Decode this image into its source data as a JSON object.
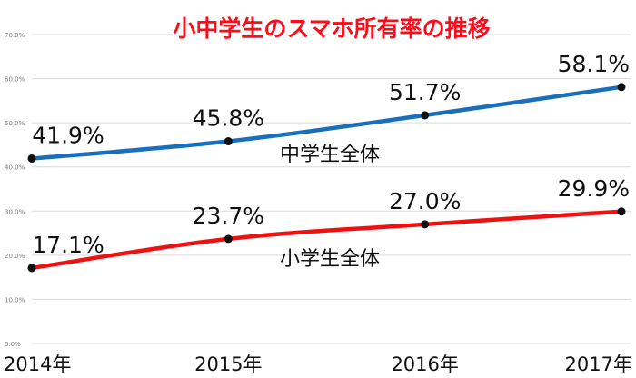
{
  "chart_data": {
    "type": "line",
    "title": "小中学生のスマホ所有率の推移",
    "categories": [
      "2014年",
      "2015年",
      "2016年",
      "2017年"
    ],
    "ylim": [
      0,
      70
    ],
    "yticks": [
      "0.0%",
      "10.0%",
      "20.0%",
      "30.0%",
      "40.0%",
      "50.0%",
      "60.0%",
      "70.0%"
    ],
    "grid": true,
    "series": [
      {
        "name": "中学生全体",
        "values": [
          41.9,
          45.8,
          51.7,
          58.1
        ],
        "labels": [
          "41.9%",
          "45.8%",
          "51.7%",
          "58.1%"
        ],
        "color": "#1a6fbd"
      },
      {
        "name": "小学生全体",
        "values": [
          17.1,
          23.7,
          27.0,
          29.9
        ],
        "labels": [
          "17.1%",
          "23.7%",
          "27.0%",
          "29.9%"
        ],
        "color": "#ee1111"
      }
    ]
  }
}
